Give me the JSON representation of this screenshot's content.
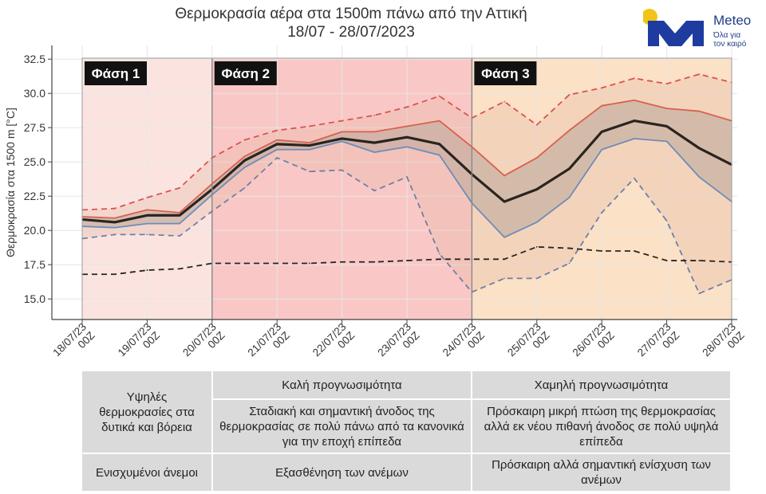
{
  "title": {
    "line1": "Θερμοκρασία αέρα στα 1500m πάνω από την Αττική",
    "line2": "18/07 - 28/07/2023"
  },
  "logo": {
    "brand": "Meteo",
    "tagline1": "Όλα για",
    "tagline2": "τον καιρό",
    "colors": {
      "sun": "#f2c318",
      "mark": "#1e3ca0"
    }
  },
  "chart_data": {
    "type": "line",
    "ylabel": "Θερμοκρασία στα 1500 m [°C]",
    "ylim": [
      13.5,
      33.5
    ],
    "yticks": [
      15.0,
      17.5,
      20.0,
      22.5,
      25.0,
      27.5,
      30.0,
      32.5
    ],
    "ytick_labels": [
      "15.0",
      "17.5",
      "20.0",
      "22.5",
      "25.0",
      "27.5",
      "30.0",
      "32.5"
    ],
    "x_tick_labels": [
      [
        "18/07/23",
        "00Z"
      ],
      [
        "19/07/23",
        "00Z"
      ],
      [
        "20/07/23",
        "00Z"
      ],
      [
        "21/07/23",
        "00Z"
      ],
      [
        "22/07/23",
        "00Z"
      ],
      [
        "23/07/23",
        "00Z"
      ],
      [
        "24/07/23",
        "00Z"
      ],
      [
        "25/07/23",
        "00Z"
      ],
      [
        "26/07/23",
        "00Z"
      ],
      [
        "27/07/23",
        "00Z"
      ],
      [
        "28/07/23",
        "00Z"
      ]
    ],
    "x_step_days": 0.5,
    "series": [
      {
        "key": "max",
        "style": "dashed",
        "color": "#d9534f",
        "values": [
          21.5,
          21.6,
          22.4,
          23.1,
          25.3,
          26.6,
          27.3,
          27.6,
          28.0,
          28.4,
          29.0,
          29.8,
          28.2,
          29.4,
          27.7,
          29.9,
          30.4,
          31.1,
          30.7,
          31.4,
          30.8
        ]
      },
      {
        "key": "upper",
        "style": "solid",
        "color": "#d9604f",
        "values": [
          21.0,
          20.9,
          21.5,
          21.3,
          23.4,
          25.4,
          26.6,
          26.4,
          27.2,
          27.2,
          27.6,
          28.0,
          26.1,
          24.0,
          25.3,
          27.3,
          29.1,
          29.5,
          28.9,
          28.7,
          28.0
        ]
      },
      {
        "key": "mean",
        "style": "solid",
        "color": "#2a2420",
        "values": [
          20.8,
          20.6,
          21.1,
          21.1,
          23.0,
          25.1,
          26.3,
          26.2,
          26.7,
          26.4,
          26.8,
          26.3,
          24.1,
          22.1,
          23.0,
          24.5,
          27.2,
          28.0,
          27.6,
          26.0,
          24.8
        ]
      },
      {
        "key": "lower",
        "style": "solid",
        "color": "#6e8cb8",
        "values": [
          20.3,
          20.2,
          20.5,
          20.5,
          22.6,
          24.6,
          25.9,
          25.9,
          26.5,
          25.7,
          26.1,
          25.5,
          22.0,
          19.5,
          20.6,
          22.4,
          25.9,
          26.7,
          26.5,
          23.9,
          22.1
        ]
      },
      {
        "key": "min",
        "style": "dashed",
        "color": "#6e7fa8",
        "values": [
          19.4,
          19.7,
          19.7,
          19.6,
          21.4,
          23.1,
          25.3,
          24.3,
          24.4,
          22.9,
          23.9,
          18.3,
          15.5,
          16.5,
          16.5,
          17.6,
          21.3,
          23.8,
          20.7,
          15.4,
          16.4
        ]
      },
      {
        "key": "climatology",
        "style": "dashed",
        "color": "#2a2420",
        "values": [
          16.8,
          16.8,
          17.1,
          17.2,
          17.6,
          17.6,
          17.6,
          17.6,
          17.7,
          17.7,
          17.8,
          17.9,
          17.9,
          17.9,
          18.8,
          18.7,
          18.5,
          18.5,
          17.8,
          17.8,
          17.7
        ]
      }
    ],
    "phases": [
      {
        "label": "Φάση 1",
        "from_tick": 0,
        "to_tick": 2,
        "color": "#fbe4e0"
      },
      {
        "label": "Φάση 2",
        "from_tick": 2,
        "to_tick": 6,
        "color": "#f9c8c6"
      },
      {
        "label": "Φάση 3",
        "from_tick": 6,
        "to_tick": 10,
        "color": "#fbe1c6"
      }
    ],
    "colors": {
      "band_outer": "#e8b9a6",
      "band_inner": "#b9a79b",
      "grid": "#e6e6e6"
    },
    "grid": true
  },
  "table": {
    "header_good": "Καλή προγνωσιμότητα",
    "header_poor": "Χαμηλή προγνωσιμότητα",
    "row1_label": "Υψηλές θερμοκρασίες στα δυτικά και βόρεια",
    "row1_good": "Σταδιακή και σημαντική άνοδος της θερμοκρασίας σε πολύ πάνω από τα κανονικά για την εποχή επίπεδα",
    "row1_poor": "Πρόσκαιρη μικρή πτώση της θερμοκρασίας αλλά εκ νέου πιθανή άνοδος σε πολύ υψηλά επίπεδα",
    "row2_label": "Ενισχυμένοι άνεμοι",
    "row2_good": "Εξασθένηση των ανέμων",
    "row2_poor": "Πρόσκαιρη αλλά σημαντική ενίσχυση των ανέμων"
  }
}
